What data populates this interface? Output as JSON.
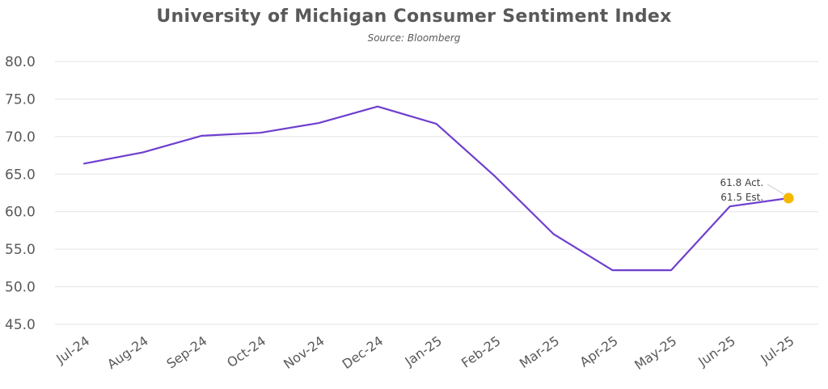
{
  "chart_data": {
    "type": "line",
    "title": "University of Michigan Consumer Sentiment Index",
    "subtitle": "Source: Bloomberg",
    "categories": [
      "Jul-24",
      "Aug-24",
      "Sep-24",
      "Oct-24",
      "Nov-24",
      "Dec-24",
      "Jan-25",
      "Feb-25",
      "Mar-25",
      "Apr-25",
      "May-25",
      "Jun-25",
      "Jul-25"
    ],
    "series": [
      {
        "values": [
          66.4,
          67.9,
          70.1,
          70.5,
          71.8,
          74.0,
          71.7,
          64.7,
          57.0,
          52.2,
          52.2,
          60.7,
          61.8
        ],
        "color": "#6f3fce"
      }
    ],
    "ylim": [
      45,
      80
    ],
    "yticks": [
      "80.0",
      "75.0",
      "70.0",
      "65.0",
      "60.0",
      "55.0",
      "50.0",
      "45.0"
    ],
    "grid": true,
    "highlight": {
      "category": "Jul-25",
      "value": 61.8,
      "color": "#f5b800",
      "labels": [
        "61.8 Act.",
        "61.5 Est."
      ]
    }
  }
}
